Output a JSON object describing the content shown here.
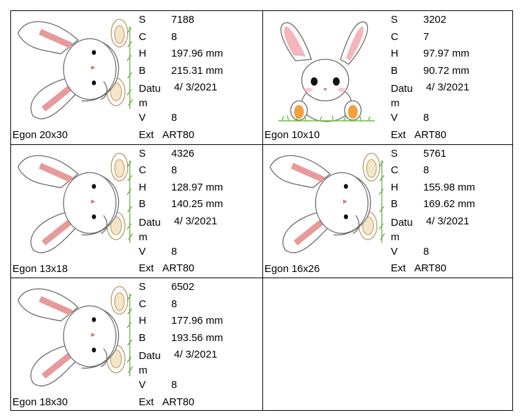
{
  "labels": {
    "s": "S",
    "c": "C",
    "h": "H",
    "b": "B",
    "datum": "Datum",
    "v": "V",
    "ext": "Ext"
  },
  "designs": [
    {
      "name": "Egon 20x30",
      "s": "7188",
      "c": "8",
      "h": "197.96 mm",
      "b": "215.31 mm",
      "datum": "4/ 3/2021",
      "v": "8",
      "ext": "ART80",
      "image": "peeking-bunny-icon"
    },
    {
      "name": "Egon 10x10",
      "s": "3202",
      "c": "7",
      "h": "97.97 mm",
      "b": "90.72 mm",
      "datum": "4/ 3/2021",
      "v": "8",
      "ext": "ART80",
      "image": "sitting-bunny-icon"
    },
    {
      "name": "Egon 13x18",
      "s": "4326",
      "c": "8",
      "h": "128.97 mm",
      "b": "140.25 mm",
      "datum": "4/ 3/2021",
      "v": "8",
      "ext": "ART80",
      "image": "peeking-bunny-icon"
    },
    {
      "name": "Egon 16x26",
      "s": "5761",
      "c": "8",
      "h": "155.98 mm",
      "b": "169.62 mm",
      "datum": "4/ 3/2021",
      "v": "8",
      "ext": "ART80",
      "image": "peeking-bunny-icon"
    },
    {
      "name": "Egon 18x30",
      "s": "6502",
      "c": "8",
      "h": "177.96 mm",
      "b": "193.56 mm",
      "datum": "4/ 3/2021",
      "v": "8",
      "ext": "ART80",
      "image": "peeking-bunny-icon"
    }
  ]
}
